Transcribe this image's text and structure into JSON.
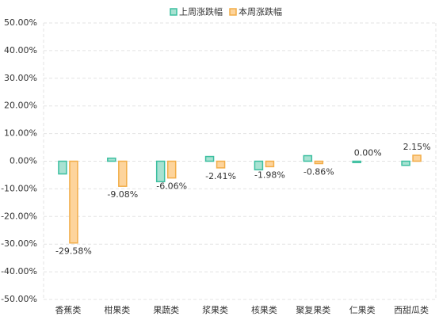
{
  "chart_data": {
    "type": "bar",
    "categories": [
      "香蕉类",
      "柑果类",
      "果蔬类",
      "浆果类",
      "核果类",
      "聚复果类",
      "仁果类",
      "西甜瓜类"
    ],
    "series": [
      {
        "name": "上周涨跌幅",
        "color": "#3cbfa0",
        "fill": "#a8e2d2",
        "values": [
          -4.6,
          1.1,
          -7.4,
          1.7,
          -3.1,
          2.0,
          -0.5,
          -1.5
        ]
      },
      {
        "name": "本周涨跌幅",
        "color": "#f2ad48",
        "fill": "#fdd49c",
        "values": [
          -29.58,
          -9.08,
          -6.06,
          -2.41,
          -1.98,
          -0.86,
          0.0,
          2.15
        ],
        "value_labels": [
          "-29.58%",
          "-9.08%",
          "-6.06%",
          "-2.41%",
          "-1.98%",
          "-0.86%",
          "0.00%",
          "2.15%"
        ]
      }
    ],
    "ylim": [
      -50,
      50
    ],
    "yticks": [
      {
        "value": -50,
        "label": "-50.00%"
      },
      {
        "value": -40,
        "label": "-40.00%"
      },
      {
        "value": -30,
        "label": "-30.00%"
      },
      {
        "value": -20,
        "label": "-20.00%"
      },
      {
        "value": -10,
        "label": "-10.00%"
      },
      {
        "value": 0,
        "label": "0.00%"
      },
      {
        "value": 10,
        "label": "10.00%"
      },
      {
        "value": 20,
        "label": "20.00%"
      },
      {
        "value": 30,
        "label": "30.00%"
      },
      {
        "value": 40,
        "label": "40.00%"
      },
      {
        "value": 50,
        "label": "50.00%"
      }
    ],
    "grid": true,
    "legend": "top"
  }
}
